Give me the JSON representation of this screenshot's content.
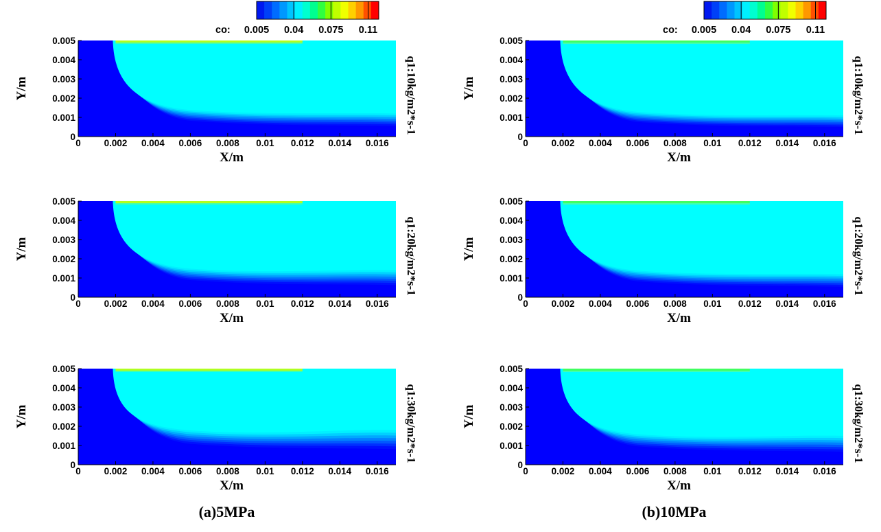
{
  "chart_data": {
    "type": "heatmap",
    "variable_label": "co:",
    "colorbar": {
      "ticks": [
        "0.005",
        "0.04",
        "0.075",
        "0.11"
      ],
      "colors": [
        "#0018f0",
        "#0040f8",
        "#006cff",
        "#0098ff",
        "#00c4ff",
        "#00f0ff",
        "#00ffd0",
        "#00ff90",
        "#30ff40",
        "#80ff00",
        "#c0ff00",
        "#f0ff00",
        "#ffd000",
        "#ff9800",
        "#ff5000",
        "#ff0000"
      ]
    },
    "xlabel": "X/m",
    "ylabel": "Y/m",
    "xlim": [
      0,
      0.017
    ],
    "ylim": [
      0,
      0.005
    ],
    "xticks": [
      "0",
      "0.002",
      "0.004",
      "0.006",
      "0.008",
      "0.01",
      "0.012",
      "0.014",
      "0.016"
    ],
    "yticks": [
      "0",
      "0.001",
      "0.002",
      "0.003",
      "0.004",
      "0.005"
    ],
    "inlet_boundary_x": 0.002,
    "wall_strip_x": [
      0.002,
      0.012
    ],
    "columns": [
      {
        "caption": "(a)5MPa",
        "wall_strip_color": "#b0ff20"
      },
      {
        "caption": "(b)10MPa",
        "wall_strip_color": "#40ff60"
      }
    ],
    "rows": [
      {
        "label": "q1:10kg/m2*s-1"
      },
      {
        "label": "q1:20kg/m2*s-1"
      },
      {
        "label": "q1:30kg/m2*s-1"
      }
    ],
    "bulk_color": "#00ffff",
    "low_color": "#0000ff",
    "panels": [
      {
        "column": 0,
        "row": 0,
        "interface_y_at_end": 0.0012,
        "interface_y_near_inlet": 0.0016
      },
      {
        "column": 0,
        "row": 1,
        "interface_y_at_end": 0.0014,
        "interface_y_near_inlet": 0.0017
      },
      {
        "column": 0,
        "row": 2,
        "interface_y_at_end": 0.0018,
        "interface_y_near_inlet": 0.002
      },
      {
        "column": 1,
        "row": 0,
        "interface_y_at_end": 0.0011,
        "interface_y_near_inlet": 0.0015
      },
      {
        "column": 1,
        "row": 1,
        "interface_y_at_end": 0.0012,
        "interface_y_near_inlet": 0.0016
      },
      {
        "column": 1,
        "row": 2,
        "interface_y_at_end": 0.0015,
        "interface_y_near_inlet": 0.0018
      }
    ]
  }
}
